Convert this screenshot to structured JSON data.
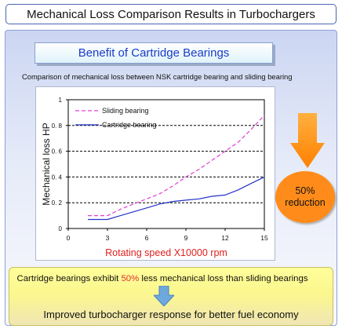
{
  "header": {
    "title": "Mechanical Loss Comparison Results in Turbochargers"
  },
  "subtitle": "Benefit of Cartridge Bearings",
  "comparison_text": "Comparison of mechanical loss between NSK cartridge bearing and sliding bearing",
  "chart_data": {
    "type": "line",
    "xlabel": "Rotating speed X10000  rpm",
    "ylabel": "Mechanical loss HP",
    "xlim": [
      0,
      15
    ],
    "ylim": [
      0,
      1
    ],
    "x_ticks": [
      "0",
      "3",
      "6",
      "9",
      "12",
      "15"
    ],
    "y_ticks": [
      "0",
      "0. 2",
      "0. 4",
      "0. 6",
      "0. 8",
      "1"
    ],
    "grid": "horizontal dashed",
    "legend_position": "top-left",
    "series": [
      {
        "name": "Sliding bearing",
        "style": "dashed",
        "color": "#e040d0",
        "points": [
          [
            1.5,
            0.1
          ],
          [
            2.5,
            0.1
          ],
          [
            3,
            0.1
          ],
          [
            4,
            0.15
          ],
          [
            5,
            0.19
          ],
          [
            6,
            0.23
          ],
          [
            7,
            0.27
          ],
          [
            8,
            0.33
          ],
          [
            9,
            0.4
          ],
          [
            10,
            0.46
          ],
          [
            11,
            0.53
          ],
          [
            12,
            0.6
          ],
          [
            13,
            0.67
          ],
          [
            14,
            0.77
          ],
          [
            15,
            0.88
          ]
        ]
      },
      {
        "name": "Cartridge bearing",
        "style": "solid",
        "color": "#2432c8",
        "points": [
          [
            1.5,
            0.07
          ],
          [
            2.5,
            0.07
          ],
          [
            3,
            0.07
          ],
          [
            4,
            0.1
          ],
          [
            5,
            0.13
          ],
          [
            6,
            0.16
          ],
          [
            7,
            0.19
          ],
          [
            8,
            0.21
          ],
          [
            9,
            0.22
          ],
          [
            10,
            0.23
          ],
          [
            11,
            0.25
          ],
          [
            12,
            0.26
          ],
          [
            13,
            0.3
          ],
          [
            14,
            0.35
          ],
          [
            15,
            0.4
          ]
        ]
      }
    ]
  },
  "badge": {
    "line1": "50%",
    "line2": "reduction",
    "color": "#ff8c1a"
  },
  "claim": {
    "prefix": "Cartridge bearings exhibit ",
    "highlight": "50%",
    "suffix": " less mechanical loss than sliding bearings"
  },
  "result": "Improved turbocharger response for better fuel economy"
}
